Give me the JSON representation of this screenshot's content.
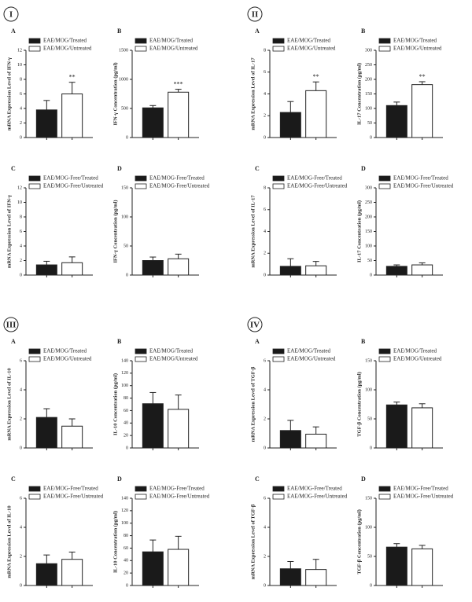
{
  "panels": [
    "I",
    "II",
    "III",
    "IV"
  ],
  "chart_data": [
    {
      "type": "bar",
      "title": "A",
      "ylabel": "mRNA Expression Level of IFN-γ",
      "ylim": [
        0,
        12
      ],
      "yticks": [
        0,
        2,
        4,
        6,
        8,
        10,
        12
      ],
      "series": [
        {
          "name": "EAE/MOG/Treated",
          "color": "#1a1a1a",
          "values": [
            3.8
          ],
          "errors": [
            1.3
          ]
        },
        {
          "name": "EAE/MOG/Untreated",
          "color": "#ffffff",
          "values": [
            6.0
          ],
          "errors": [
            1.6
          ],
          "annotation": "**"
        }
      ]
    },
    {
      "type": "bar",
      "title": "B",
      "ylabel": "IFN-γ Concentration (pg/ml)",
      "ylim": [
        0,
        1500
      ],
      "yticks": [
        0,
        500,
        1000,
        1500
      ],
      "series": [
        {
          "name": "EAE/MOG/Treated",
          "color": "#1a1a1a",
          "values": [
            510
          ],
          "errors": [
            40
          ]
        },
        {
          "name": "EAE/MOG/Untreated",
          "color": "#ffffff",
          "values": [
            780
          ],
          "errors": [
            50
          ],
          "annotation": "***"
        }
      ]
    },
    {
      "type": "bar",
      "title": "C",
      "ylabel": "mRNA Expression Level of IFN-γ",
      "ylim": [
        0,
        12
      ],
      "yticks": [
        0,
        2,
        4,
        6,
        8,
        10,
        12
      ],
      "series": [
        {
          "name": "EAE/MOG-Free/Treated",
          "color": "#1a1a1a",
          "values": [
            1.4
          ],
          "errors": [
            0.5
          ]
        },
        {
          "name": "EAE/MOG-Free/Untreated",
          "color": "#ffffff",
          "values": [
            1.7
          ],
          "errors": [
            0.8
          ]
        }
      ]
    },
    {
      "type": "bar",
      "title": "D",
      "ylabel": "IFN-γ Concentration (pg/ml)",
      "ylim": [
        0,
        150
      ],
      "yticks": [
        0,
        50,
        100,
        150
      ],
      "series": [
        {
          "name": "EAE/MOG-Free/Treated",
          "color": "#1a1a1a",
          "values": [
            25
          ],
          "errors": [
            6
          ]
        },
        {
          "name": "EAE/MOG-Free/Untreated",
          "color": "#ffffff",
          "values": [
            28
          ],
          "errors": [
            8
          ]
        }
      ]
    },
    {
      "type": "bar",
      "title": "A",
      "ylabel": "mRNA Expression Level of IL-17",
      "ylim": [
        0,
        8
      ],
      "yticks": [
        0,
        2,
        4,
        6,
        8
      ],
      "series": [
        {
          "name": "EAE/MOG/Treated",
          "color": "#1a1a1a",
          "values": [
            2.3
          ],
          "errors": [
            1.0
          ]
        },
        {
          "name": "EAE/MOG/Untreated",
          "color": "#ffffff",
          "values": [
            4.3
          ],
          "errors": [
            0.8
          ],
          "annotation": "**"
        }
      ]
    },
    {
      "type": "bar",
      "title": "B",
      "ylabel": "IL-17 Concentration (pg/ml)",
      "ylim": [
        0,
        300
      ],
      "yticks": [
        0,
        50,
        100,
        150,
        200,
        250,
        300
      ],
      "series": [
        {
          "name": "EAE/MOG/Treated",
          "color": "#1a1a1a",
          "values": [
            110
          ],
          "errors": [
            12
          ]
        },
        {
          "name": "EAE/MOG/Untreated",
          "color": "#ffffff",
          "values": [
            182
          ],
          "errors": [
            10
          ],
          "annotation": "**"
        }
      ]
    },
    {
      "type": "bar",
      "title": "C",
      "ylabel": "mRNA Expression Level of IL-17",
      "ylim": [
        0,
        8
      ],
      "yticks": [
        0,
        2,
        4,
        6,
        8
      ],
      "series": [
        {
          "name": "EAE/MOG-Free/Treated",
          "color": "#1a1a1a",
          "values": [
            0.8
          ],
          "errors": [
            0.7
          ]
        },
        {
          "name": "EAE/MOG-Free/Untreated",
          "color": "#ffffff",
          "values": [
            0.85
          ],
          "errors": [
            0.4
          ]
        }
      ]
    },
    {
      "type": "bar",
      "title": "D",
      "ylabel": "IL-17 Concentration (pg/ml)",
      "ylim": [
        0,
        300
      ],
      "yticks": [
        0,
        50,
        100,
        150,
        200,
        250,
        300
      ],
      "series": [
        {
          "name": "EAE/MOG-Free/Treated",
          "color": "#1a1a1a",
          "values": [
            30
          ],
          "errors": [
            5
          ]
        },
        {
          "name": "EAE/MOG-Free/Untreated",
          "color": "#ffffff",
          "values": [
            35
          ],
          "errors": [
            7
          ]
        }
      ]
    },
    {
      "type": "bar",
      "title": "A",
      "ylabel": "mRNA Expression Level of IL-10",
      "ylim": [
        0,
        6
      ],
      "yticks": [
        0,
        2,
        4,
        6
      ],
      "series": [
        {
          "name": "EAE/MOG/Treated",
          "color": "#1a1a1a",
          "values": [
            2.1
          ],
          "errors": [
            0.6
          ]
        },
        {
          "name": "EAE/MOG/Untreated",
          "color": "#ffffff",
          "values": [
            1.5
          ],
          "errors": [
            0.5
          ]
        }
      ]
    },
    {
      "type": "bar",
      "title": "B",
      "ylabel": "IL-10 Concentration (pg/ml)",
      "ylim": [
        0,
        140
      ],
      "yticks": [
        0,
        20,
        40,
        60,
        80,
        100,
        120,
        140
      ],
      "series": [
        {
          "name": "EAE/MOG/Treated",
          "color": "#1a1a1a",
          "values": [
            71
          ],
          "errors": [
            18
          ]
        },
        {
          "name": "EAE/MOG/Untreated",
          "color": "#ffffff",
          "values": [
            62
          ],
          "errors": [
            23
          ]
        }
      ]
    },
    {
      "type": "bar",
      "title": "C",
      "ylabel": "mRNA Expression Level of IL-10",
      "ylim": [
        0,
        6
      ],
      "yticks": [
        0,
        2,
        4,
        6
      ],
      "series": [
        {
          "name": "EAE/MOG-Free/Treated",
          "color": "#1a1a1a",
          "values": [
            1.5
          ],
          "errors": [
            0.6
          ]
        },
        {
          "name": "EAE/MOG-Free/Untreated",
          "color": "#ffffff",
          "values": [
            1.8
          ],
          "errors": [
            0.5
          ]
        }
      ]
    },
    {
      "type": "bar",
      "title": "D",
      "ylabel": "IL-10 Concentration (pg/ml)",
      "ylim": [
        0,
        140
      ],
      "yticks": [
        0,
        20,
        40,
        60,
        80,
        100,
        120,
        140
      ],
      "series": [
        {
          "name": "EAE/MOG-Free/Treated",
          "color": "#1a1a1a",
          "values": [
            54
          ],
          "errors": [
            19
          ]
        },
        {
          "name": "EAE/MOG-Free/Untreated",
          "color": "#ffffff",
          "values": [
            58
          ],
          "errors": [
            21
          ]
        }
      ]
    },
    {
      "type": "bar",
      "title": "A",
      "ylabel": "mRNA Expression Level of TGF-β",
      "ylim": [
        0,
        6
      ],
      "yticks": [
        0,
        2,
        4,
        6
      ],
      "series": [
        {
          "name": "EAE/MOG/Treated",
          "color": "#1a1a1a",
          "values": [
            1.2
          ],
          "errors": [
            0.7
          ]
        },
        {
          "name": "EAE/MOG/Untreated",
          "color": "#ffffff",
          "values": [
            0.95
          ],
          "errors": [
            0.5
          ]
        }
      ]
    },
    {
      "type": "bar",
      "title": "B",
      "ylabel": "TGF-β Concentration (pg/ml)",
      "ylim": [
        0,
        150
      ],
      "yticks": [
        0,
        50,
        100,
        150
      ],
      "series": [
        {
          "name": "EAE/MOG/Treated",
          "color": "#1a1a1a",
          "values": [
            74
          ],
          "errors": [
            5
          ]
        },
        {
          "name": "EAE/MOG/Untreated",
          "color": "#ffffff",
          "values": [
            69
          ],
          "errors": [
            7
          ]
        }
      ]
    },
    {
      "type": "bar",
      "title": "C",
      "ylabel": "mRNA Expression Level of TGF-β",
      "ylim": [
        0,
        6
      ],
      "yticks": [
        0,
        2,
        4,
        6
      ],
      "series": [
        {
          "name": "EAE/MOG-Free/Treated",
          "color": "#1a1a1a",
          "values": [
            1.15
          ],
          "errors": [
            0.5
          ]
        },
        {
          "name": "EAE/MOG-Free/Untreated",
          "color": "#ffffff",
          "values": [
            1.1
          ],
          "errors": [
            0.7
          ]
        }
      ]
    },
    {
      "type": "bar",
      "title": "D",
      "ylabel": "TGF-β Concentration (pg/ml)",
      "ylim": [
        0,
        150
      ],
      "yticks": [
        0,
        50,
        100,
        150
      ],
      "series": [
        {
          "name": "EAE/MOG-Free/Treated",
          "color": "#1a1a1a",
          "values": [
            66
          ],
          "errors": [
            6
          ]
        },
        {
          "name": "EAE/MOG-Free/Untreated",
          "color": "#ffffff",
          "values": [
            63
          ],
          "errors": [
            6
          ]
        }
      ]
    }
  ]
}
